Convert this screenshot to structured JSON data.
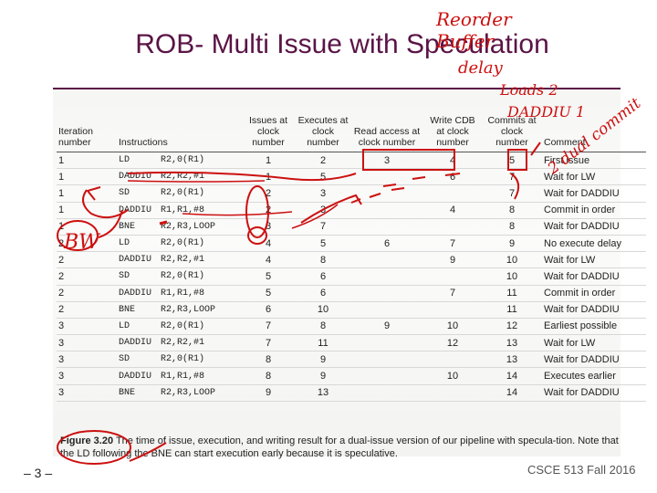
{
  "slide": {
    "title": "ROB- Multi Issue with Speculation",
    "page_number": "– 3 –",
    "course": "CSCE 513 Fall 2016"
  },
  "table": {
    "headers": [
      "Iteration number",
      "Instructions",
      "",
      "Issues at clock number",
      "Executes at clock number",
      "Read access at clock number",
      "Write CDB at clock number",
      "Commits at clock number",
      "Comment"
    ],
    "rows": [
      {
        "iter": "1",
        "op": "LD",
        "args": "R2,0(R1)",
        "issue": "1",
        "exec": "2",
        "read": "3",
        "write": "4",
        "commit": "5",
        "comment": "First issue"
      },
      {
        "iter": "1",
        "op": "DADDIU",
        "args": "R2,R2,#1",
        "issue": "1",
        "exec": "5",
        "read": "",
        "write": "6",
        "commit": "7",
        "comment": "Wait for LW"
      },
      {
        "iter": "1",
        "op": "SD",
        "args": "R2,0(R1)",
        "issue": "2",
        "exec": "3",
        "read": "",
        "write": "",
        "commit": "7",
        "comment": "Wait for DADDIU"
      },
      {
        "iter": "1",
        "op": "DADDIU",
        "args": "R1,R1,#8",
        "issue": "2",
        "exec": "3",
        "read": "",
        "write": "4",
        "commit": "8",
        "comment": "Commit in order"
      },
      {
        "iter": "1",
        "op": "BNE",
        "args": "R2,R3,LOOP",
        "issue": "3",
        "exec": "7",
        "read": "",
        "write": "",
        "commit": "8",
        "comment": "Wait for DADDIU"
      },
      {
        "iter": "2",
        "op": "LD",
        "args": "R2,0(R1)",
        "issue": "4",
        "exec": "5",
        "read": "6",
        "write": "7",
        "commit": "9",
        "comment": "No execute delay"
      },
      {
        "iter": "2",
        "op": "DADDIU",
        "args": "R2,R2,#1",
        "issue": "4",
        "exec": "8",
        "read": "",
        "write": "9",
        "commit": "10",
        "comment": "Wait for LW"
      },
      {
        "iter": "2",
        "op": "SD",
        "args": "R2,0(R1)",
        "issue": "5",
        "exec": "6",
        "read": "",
        "write": "",
        "commit": "10",
        "comment": "Wait for DADDIU"
      },
      {
        "iter": "2",
        "op": "DADDIU",
        "args": "R1,R1,#8",
        "issue": "5",
        "exec": "6",
        "read": "",
        "write": "7",
        "commit": "11",
        "comment": "Commit in order"
      },
      {
        "iter": "2",
        "op": "BNE",
        "args": "R2,R3,LOOP",
        "issue": "6",
        "exec": "10",
        "read": "",
        "write": "",
        "commit": "11",
        "comment": "Wait for DADDIU"
      },
      {
        "iter": "3",
        "op": "LD",
        "args": "R2,0(R1)",
        "issue": "7",
        "exec": "8",
        "read": "9",
        "write": "10",
        "commit": "12",
        "comment": "Earliest possible"
      },
      {
        "iter": "3",
        "op": "DADDIU",
        "args": "R2,R2,#1",
        "issue": "7",
        "exec": "11",
        "read": "",
        "write": "12",
        "commit": "13",
        "comment": "Wait for LW"
      },
      {
        "iter": "3",
        "op": "SD",
        "args": "R2,0(R1)",
        "issue": "8",
        "exec": "9",
        "read": "",
        "write": "",
        "commit": "13",
        "comment": "Wait for DADDIU"
      },
      {
        "iter": "3",
        "op": "DADDIU",
        "args": "R1,R1,#8",
        "issue": "8",
        "exec": "9",
        "read": "",
        "write": "10",
        "commit": "14",
        "comment": "Executes earlier"
      },
      {
        "iter": "3",
        "op": "BNE",
        "args": "R2,R3,LOOP",
        "issue": "9",
        "exec": "13",
        "read": "",
        "write": "",
        "commit": "14",
        "comment": "Wait for DADDIU"
      }
    ]
  },
  "caption": {
    "label": "Figure 3.20",
    "text": "The time of issue, execution, and writing result for a dual-issue version of our pipeline with specula-tion. Note that the LD following the BNE can start execution early because it is speculative."
  },
  "annotations": {
    "top_right": [
      "Reorder",
      "Buffer",
      "delay"
    ],
    "loads": "Loads 2",
    "daddiu": "DADDIU 1",
    "dual_commit": "2 dual commit",
    "bw": "BW"
  },
  "colors": {
    "title": "#5a1446",
    "ink": "#cc1010"
  }
}
